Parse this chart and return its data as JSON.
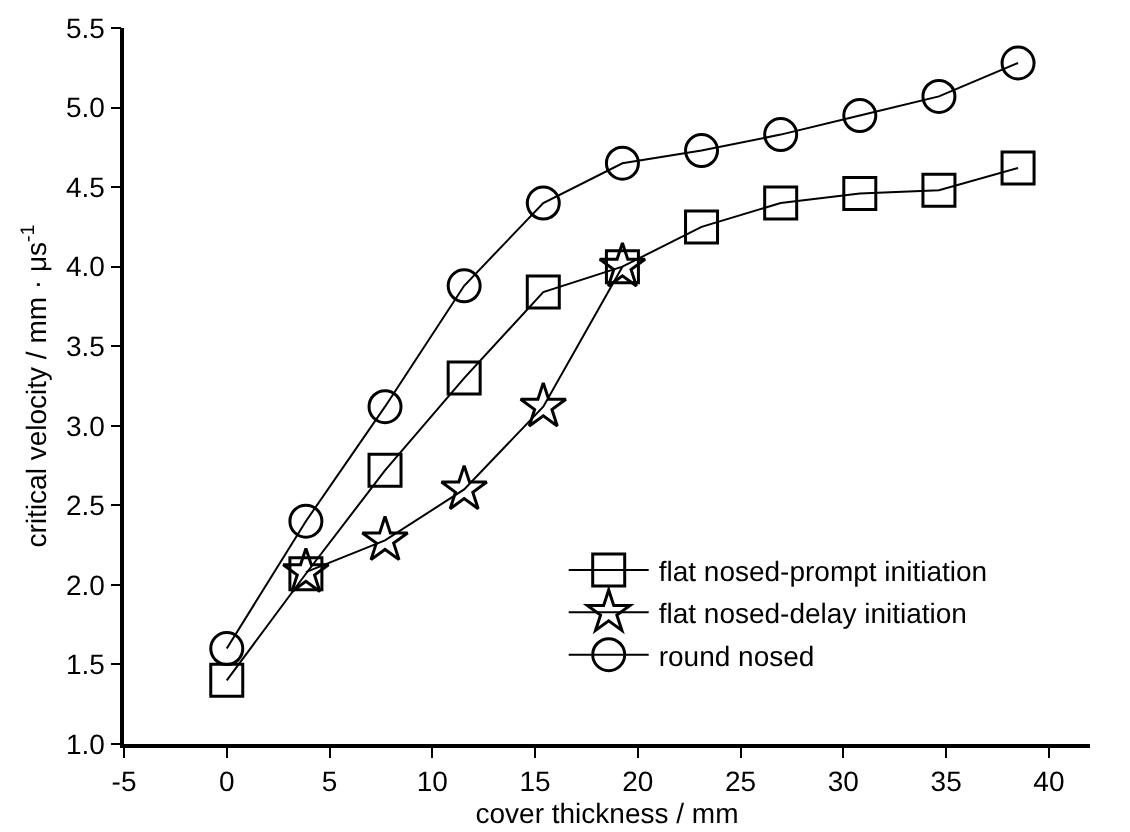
{
  "chart_data": {
    "type": "line",
    "xlabel": "cover thickness / mm",
    "ylabel": "critical velocity / mm · μs$^{-1}$",
    "xlim": [
      -5,
      42
    ],
    "ylim": [
      1.0,
      5.5
    ],
    "xticks": [
      -5,
      0,
      5,
      10,
      15,
      20,
      25,
      30,
      35,
      40
    ],
    "yticks": [
      {
        "value": 1.0,
        "label": "1.0"
      },
      {
        "value": 1.5,
        "label": "1.5"
      },
      {
        "value": 2.0,
        "label": "2.0"
      },
      {
        "value": 2.5,
        "label": "2.5"
      },
      {
        "value": 3.0,
        "label": "3.0"
      },
      {
        "value": 3.5,
        "label": "3.5"
      },
      {
        "value": 4.0,
        "label": "4.0"
      },
      {
        "value": 4.5,
        "label": "4.5"
      },
      {
        "value": 5.0,
        "label": "5.0"
      },
      {
        "value": 5.5,
        "label": "5.5"
      }
    ],
    "grid": false,
    "legend": "bottom right",
    "line_style": "solid",
    "series": [
      {
        "name": "flat nosed-prompt initiation",
        "color": "#000000",
        "marker": "square",
        "x": [
          0,
          3.85,
          7.7,
          11.55,
          15.4,
          19.25,
          23.1,
          26.95,
          30.8,
          34.65,
          38.5
        ],
        "values": [
          1.4,
          2.07,
          2.72,
          3.3,
          3.84,
          4.0,
          4.25,
          4.4,
          4.46,
          4.48,
          4.62
        ]
      },
      {
        "name": "flat nosed-delay initiation",
        "color": "#000000",
        "marker": "star",
        "x": [
          3.85,
          7.7,
          11.55,
          15.4,
          19.25
        ],
        "values": [
          2.08,
          2.28,
          2.6,
          3.12,
          4.0
        ]
      },
      {
        "name": "round nosed",
        "color": "#000000",
        "marker": "circle",
        "x": [
          0,
          3.85,
          7.7,
          11.55,
          15.4,
          19.25,
          23.1,
          26.95,
          30.8,
          34.65,
          38.5
        ],
        "values": [
          1.6,
          2.4,
          3.12,
          3.88,
          4.4,
          4.65,
          4.73,
          4.83,
          4.95,
          5.07,
          5.28
        ]
      }
    ]
  }
}
